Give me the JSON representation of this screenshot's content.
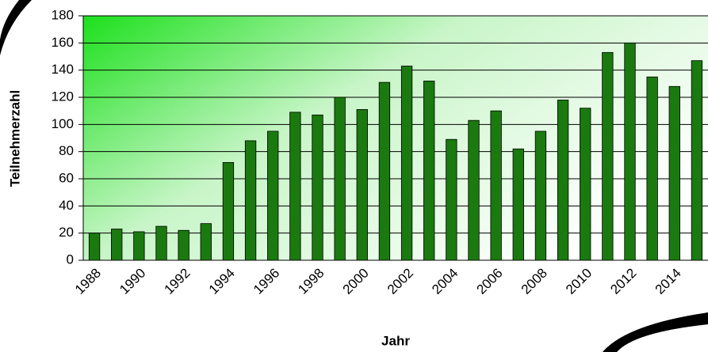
{
  "chart_data": {
    "type": "bar",
    "x_label": "Jahr",
    "y_label": "Teilnehmerzahl",
    "categories": [
      "1988",
      null,
      "1990",
      null,
      "1992",
      null,
      "1994",
      null,
      "1996",
      null,
      "1998",
      null,
      "2000",
      null,
      "2002",
      null,
      "2004",
      null,
      "2006",
      null,
      "2008",
      null,
      "2010",
      null,
      "2012",
      null,
      "2014",
      null
    ],
    "values": [
      20,
      23,
      21,
      25,
      22,
      27,
      72,
      88,
      95,
      109,
      107,
      120,
      111,
      131,
      143,
      132,
      89,
      103,
      110,
      82,
      95,
      118,
      112,
      153,
      160,
      135,
      128,
      147
    ],
    "color": "#1a7a0f",
    "ylim": [
      0,
      180
    ],
    "yticks": [
      0,
      20,
      40,
      60,
      80,
      100,
      120,
      140,
      160,
      180
    ],
    "grid": true
  }
}
